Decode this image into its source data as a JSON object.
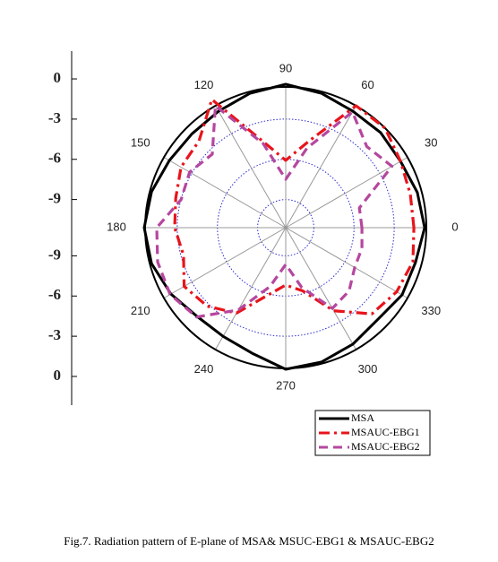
{
  "chart_data": {
    "type": "polar",
    "caption": "Fig.7. Radiation pattern of E-plane of MSA& MSUC-EBG1 & MSAUC-EBG2",
    "x": [
      0,
      15,
      30,
      45,
      60,
      75,
      90,
      105,
      120,
      135,
      150,
      165,
      180,
      195,
      210,
      225,
      240,
      255,
      270,
      285,
      300,
      315,
      330,
      345
    ],
    "thetaticks": [
      0,
      30,
      60,
      90,
      120,
      150,
      180,
      210,
      240,
      270,
      300,
      330
    ],
    "rlim": [
      -11.1,
      -0.6
    ],
    "rticks": [
      -9,
      -6,
      -3,
      0
    ],
    "grid": true,
    "series": [
      {
        "name": "MSA",
        "color": "#000000",
        "dash": "solid",
        "values": [
          -0.73,
          -0.93,
          -1.2,
          -1.07,
          -1.07,
          -0.73,
          -0.4,
          -0.73,
          -1.07,
          -1.2,
          -1.07,
          -0.73,
          -0.53,
          -0.73,
          -1.2,
          -1.74,
          -1.74,
          -1.4,
          -0.53,
          -0.73,
          -1.07,
          -1.4,
          -1.07,
          -1.07
        ]
      },
      {
        "name": "MSAUC-EBG1",
        "color": "#e8141b",
        "dash": "dashdot",
        "values": [
          -1.53,
          -1.47,
          -1.2,
          -0.6,
          -0.6,
          -4.41,
          -6.08,
          -4.41,
          -0.06,
          -1.94,
          -2.07,
          -2.6,
          -2.81,
          -3.2,
          -2.34,
          -2.81,
          -3.74,
          -5.88,
          -6.82,
          -6.22,
          -3.94,
          -2.0,
          -1.53,
          -1.27
        ]
      },
      {
        "name": "MSAUC-EBG2",
        "color": "#b5479e",
        "dash": "dash",
        "values": [
          -5.41,
          -5.41,
          -1.94,
          -2.54,
          -1.13,
          -4.95,
          -7.49,
          -4.61,
          -0.6,
          -3.34,
          -2.81,
          -3.01,
          -1.47,
          -1.2,
          -1.13,
          -1.67,
          -4.01,
          -6.55,
          -8.36,
          -6.48,
          -4.14,
          -4.41,
          -5.15,
          -5.21
        ]
      }
    ]
  }
}
